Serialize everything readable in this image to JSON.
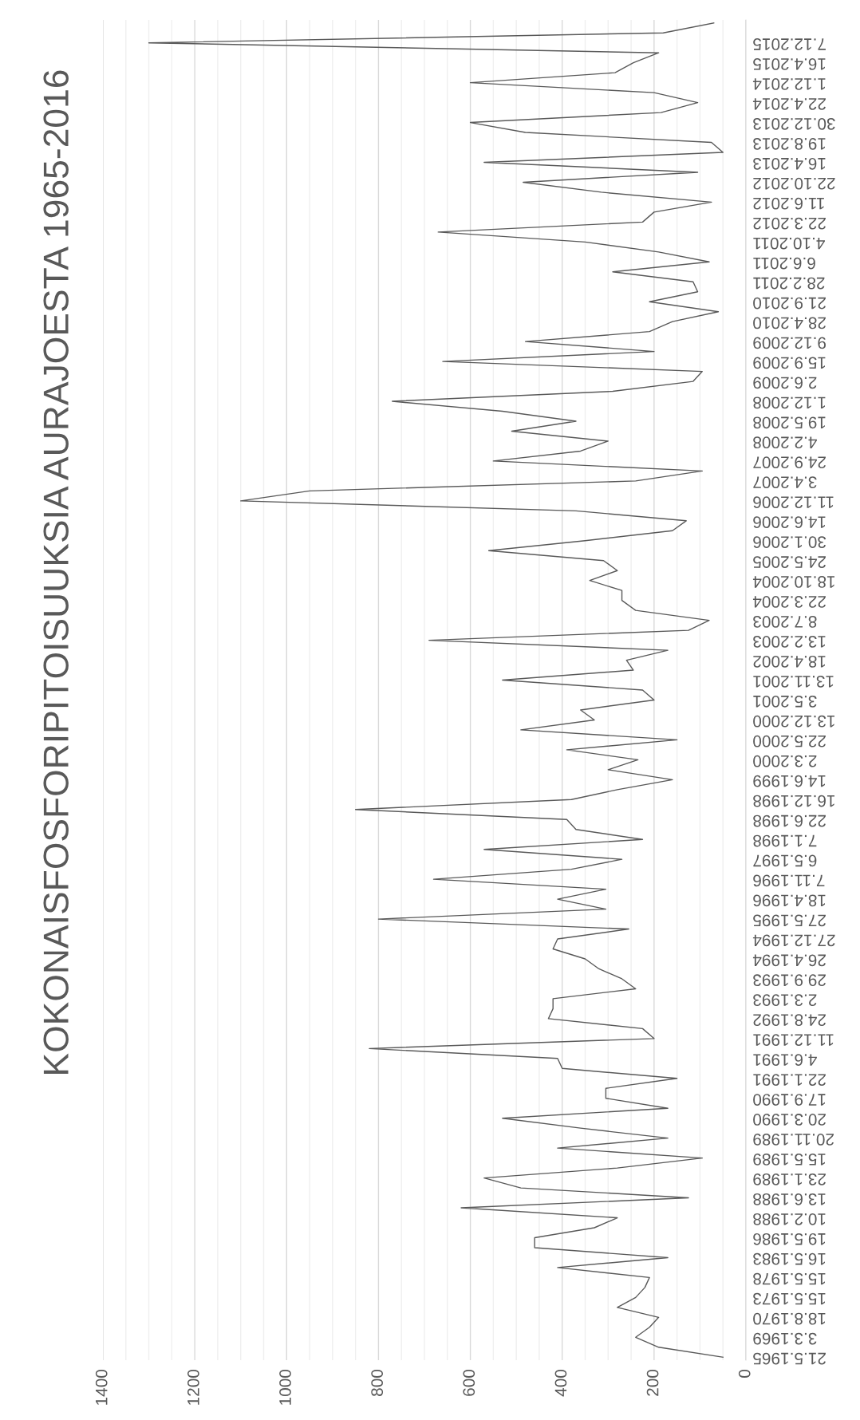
{
  "chart_data": {
    "type": "line",
    "title": "KOKONAISFOSFORIPITOISUUKSIA AURAJOESTA 1965-2016",
    "orientation": "horizontal",
    "categories": [
      null,
      null,
      "7.12.2015",
      null,
      "16.4.2015",
      null,
      "1.12.2014",
      null,
      "22.4.2014",
      null,
      "30.12.2013",
      null,
      "19.8.2013",
      null,
      "16.4.2013",
      null,
      "22.10.2012",
      null,
      "11.6.2012",
      null,
      "22.3.2012",
      null,
      "4.10.2011",
      null,
      "6.6.2011",
      null,
      "28.2.2011",
      null,
      "21.9.2010",
      null,
      "28.4.2010",
      null,
      "9.12.2009",
      null,
      "15.9.2009",
      null,
      "2.6.2009",
      null,
      "1.12.2008",
      null,
      "19.5.2008",
      null,
      "4.2.2008",
      null,
      "24.9.2007",
      null,
      "3.4.2007",
      null,
      "11.12.2006",
      null,
      "14.6.2006",
      null,
      "30.1.2006",
      null,
      "24.5.2005",
      null,
      "18.10.2004",
      null,
      "22.3.2004",
      null,
      "8.7.2003",
      null,
      "13.2.2003",
      null,
      "18.4.2002",
      null,
      "13.11.2001",
      null,
      "3.5.2001",
      null,
      "13.12.2000",
      null,
      "22.5.2000",
      null,
      "2.3.2000",
      null,
      "14.6.1999",
      null,
      "16.12.1998",
      null,
      "22.6.1998",
      null,
      "7.1.1998",
      null,
      "6.5.1997",
      null,
      "7.11.1996",
      null,
      "18.4.1996",
      null,
      "27.5.1995",
      null,
      "27.12.1994",
      null,
      "26.4.1994",
      null,
      "29.9.1993",
      null,
      "2.3.1993",
      null,
      "24.8.1992",
      null,
      "11.12.1991",
      null,
      "4.6.1991",
      null,
      "22.1.1991",
      null,
      "17.9.1990",
      null,
      "20.3.1990",
      null,
      "20.11.1989",
      null,
      "15.5.1989",
      null,
      "23.1.1989",
      null,
      "13.6.1988",
      null,
      "10.2.1988",
      null,
      "19.5.1986",
      null,
      "16.5.1983",
      null,
      "15.5.1978",
      null,
      "15.5.1973",
      null,
      "18.8.1970",
      null,
      "3.3.1969",
      null,
      "21.5.1965"
    ],
    "values": [
      70,
      180,
      1300,
      190,
      245,
      285,
      600,
      200,
      105,
      185,
      600,
      480,
      75,
      50,
      570,
      105,
      485,
      315,
      75,
      200,
      225,
      670,
      350,
      190,
      80,
      290,
      115,
      105,
      210,
      60,
      160,
      210,
      480,
      200,
      660,
      95,
      115,
      290,
      770,
      530,
      370,
      510,
      300,
      360,
      550,
      95,
      240,
      950,
      1100,
      370,
      130,
      160,
      350,
      560,
      310,
      280,
      340,
      270,
      270,
      240,
      80,
      125,
      690,
      170,
      260,
      245,
      530,
      225,
      200,
      360,
      330,
      490,
      150,
      390,
      235,
      300,
      160,
      280,
      380,
      850,
      390,
      370,
      225,
      570,
      270,
      380,
      680,
      305,
      410,
      305,
      800,
      255,
      410,
      420,
      350,
      320,
      270,
      240,
      420,
      420,
      430,
      225,
      200,
      820,
      410,
      400,
      150,
      305,
      305,
      170,
      530,
      360,
      170,
      410,
      95,
      280,
      570,
      490,
      125,
      620,
      280,
      330,
      460,
      460,
      170,
      410,
      210,
      220,
      240,
      280,
      190,
      210,
      240,
      190,
      50
    ],
    "color": "#595959",
    "xlim": [
      1400,
      0
    ],
    "xticks": [
      {
        "value": 1400,
        "label": "1400"
      },
      {
        "value": 1350,
        "label": null
      },
      {
        "value": 1300,
        "label": null
      },
      {
        "value": 1250,
        "label": null
      },
      1200,
      {
        "value": 1150,
        "label": null
      },
      {
        "value": 1100,
        "label": null
      },
      {
        "value": 1050,
        "label": null
      },
      1000,
      {
        "value": 950,
        "label": null
      },
      {
        "value": 900,
        "label": null
      },
      {
        "value": 850,
        "label": null
      },
      800,
      {
        "value": 750,
        "label": null
      },
      {
        "value": 700,
        "label": null
      },
      {
        "value": 650,
        "label": null
      },
      600,
      {
        "value": 550,
        "label": null
      },
      {
        "value": 500,
        "label": null
      },
      {
        "value": 450,
        "label": null
      },
      400,
      {
        "value": 350,
        "label": null
      },
      {
        "value": 300,
        "label": null
      },
      {
        "value": 250,
        "label": null
      },
      200,
      {
        "value": 150,
        "label": null
      },
      {
        "value": 100,
        "label": null
      },
      {
        "value": 50,
        "label": null
      },
      0
    ],
    "grid": true
  }
}
